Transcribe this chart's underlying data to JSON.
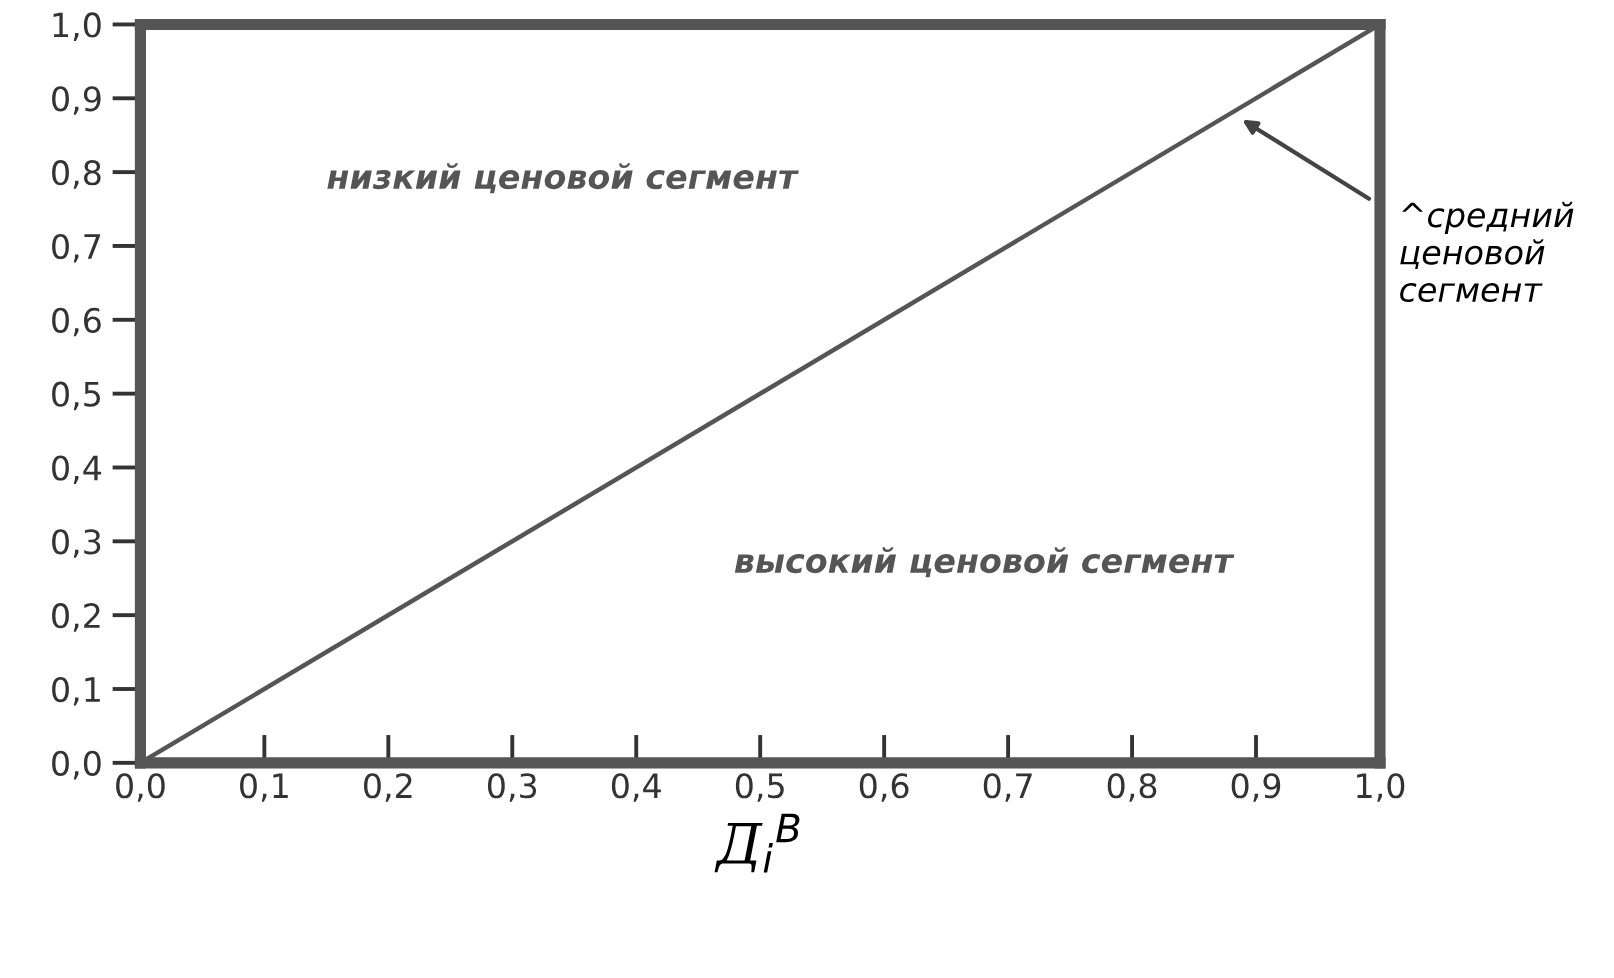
{
  "chart_data": {
    "type": "line",
    "xlabel": "Д$_{i}$$^{B}$",
    "x": [
      0.0,
      1.0
    ],
    "series": [
      {
        "color": "#555555",
        "values": [
          0.0,
          1.0
        ]
      }
    ],
    "xlim": [
      0.0,
      1.0
    ],
    "ylim": [
      0.0,
      1.0
    ],
    "xticks": [
      {
        "value": 0.0,
        "label": "0,0"
      },
      {
        "value": 0.1,
        "label": "0,1"
      },
      {
        "value": 0.2,
        "label": "0,2"
      },
      {
        "value": 0.3,
        "label": "0,3"
      },
      {
        "value": 0.4,
        "label": "0,4"
      },
      {
        "value": 0.5,
        "label": "0,5"
      },
      {
        "value": 0.6,
        "label": "0,6"
      },
      {
        "value": 0.7,
        "label": "0,7"
      },
      {
        "value": 0.8,
        "label": "0,8"
      },
      {
        "value": 0.9,
        "label": "0,9"
      },
      {
        "value": 1.0,
        "label": "1,0"
      }
    ],
    "yticks": [
      {
        "value": 0.0,
        "label": "0,0"
      },
      {
        "value": 0.1,
        "label": "0,1"
      },
      {
        "value": 0.2,
        "label": "0,2"
      },
      {
        "value": 0.3,
        "label": "0,3"
      },
      {
        "value": 0.4,
        "label": "0,4"
      },
      {
        "value": 0.5,
        "label": "0,5"
      },
      {
        "value": 0.6,
        "label": "0,6"
      },
      {
        "value": 0.7,
        "label": "0,7"
      },
      {
        "value": 0.8,
        "label": "0,8"
      },
      {
        "value": 0.9,
        "label": "0,9"
      },
      {
        "value": 1.0,
        "label": "1,0"
      }
    ],
    "grid": false,
    "marker": "none",
    "line_style": "solid",
    "annotations": [
      "низкий ценовой сегмент",
      "высокий ценовой сегмент",
      "^средний\nценовой\nсегмент"
    ]
  }
}
